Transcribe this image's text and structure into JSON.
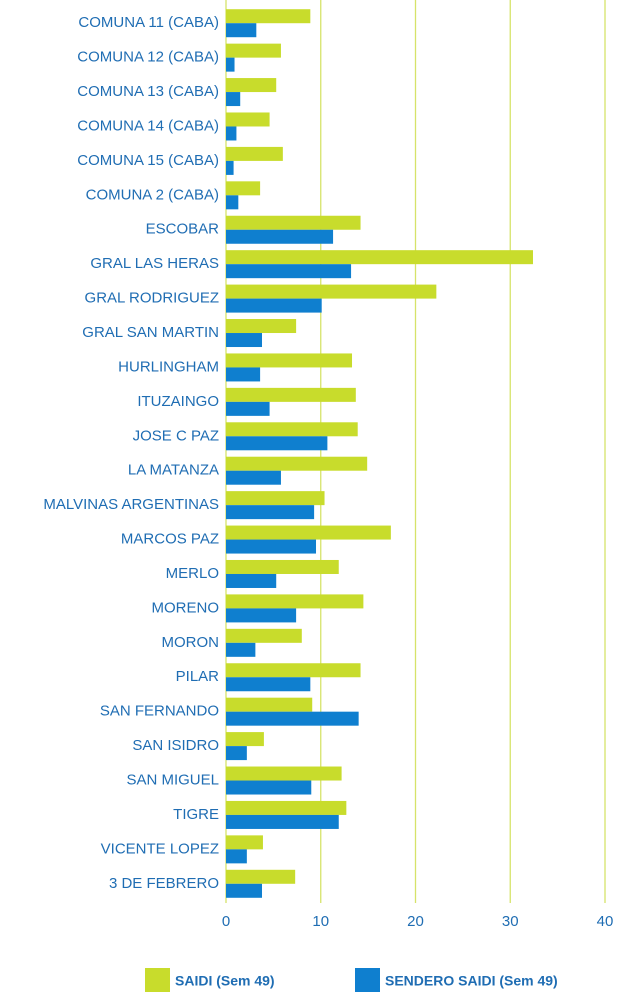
{
  "chart_data": {
    "type": "hbar",
    "categories": [
      "COMUNA 11 (CABA)",
      "COMUNA 12 (CABA)",
      "COMUNA 13 (CABA)",
      "COMUNA 14 (CABA)",
      "COMUNA 15 (CABA)",
      "COMUNA 2 (CABA)",
      "ESCOBAR",
      "GRAL LAS HERAS",
      "GRAL RODRIGUEZ",
      "GRAL SAN MARTIN",
      "HURLINGHAM",
      "ITUZAINGO",
      "JOSE C PAZ",
      "LA MATANZA",
      "MALVINAS ARGENTINAS",
      "MARCOS PAZ",
      "MERLO",
      "MORENO",
      "MORON",
      "PILAR",
      "SAN FERNANDO",
      "SAN ISIDRO",
      "SAN MIGUEL",
      "TIGRE",
      "VICENTE LOPEZ",
      "3 DE FEBRERO"
    ],
    "series": [
      {
        "name": "SAIDI (Sem 49)",
        "color": "#c8dc2c",
        "values": [
          8.9,
          5.8,
          5.3,
          4.6,
          6.0,
          3.6,
          14.2,
          32.4,
          22.2,
          7.4,
          13.3,
          13.7,
          13.9,
          14.9,
          10.4,
          17.4,
          11.9,
          14.5,
          8.0,
          14.2,
          9.1,
          4.0,
          12.2,
          12.7,
          3.9,
          7.3
        ]
      },
      {
        "name": "SENDERO SAIDI  (Sem 49)",
        "color": "#0f7fcf",
        "values": [
          3.2,
          0.9,
          1.5,
          1.1,
          0.8,
          1.3,
          11.3,
          13.2,
          10.1,
          3.8,
          3.6,
          4.6,
          10.7,
          5.8,
          9.3,
          9.5,
          5.3,
          7.4,
          3.1,
          8.9,
          14.0,
          2.2,
          9.0,
          11.9,
          2.2,
          3.8
        ]
      }
    ],
    "xlim": [
      0,
      40
    ],
    "xticks": [
      0,
      10,
      20,
      30,
      40
    ],
    "grid": true,
    "grid_color": "#d6e36a"
  }
}
